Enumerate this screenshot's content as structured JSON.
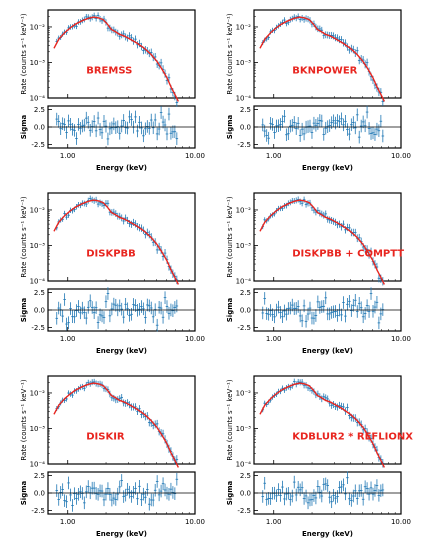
{
  "chart_data": {
    "type": "scatter",
    "layout": "3x2 grid of spectral fit panels, each with a residual sub-panel",
    "xlabel": "Energy (keV)",
    "ylabel_top": "Rate (counts s⁻¹ keV⁻¹)",
    "ylabel_bottom": "Sigma",
    "x_scale": "log",
    "xlim": [
      0.7,
      10
    ],
    "xticks": [
      "1.00",
      "10.00"
    ],
    "top_y_scale": "log",
    "top_ylim": [
      0.0001,
      0.03
    ],
    "top_yticks": [
      "10⁻²",
      "10⁻³",
      "10⁻⁴"
    ],
    "bottom_ylim": [
      -3,
      3
    ],
    "bottom_yticks": [
      "2.5",
      "0.0",
      "-2.5"
    ],
    "colors": {
      "data": "#1f77b4",
      "model": "#e8251f",
      "label": "#e8251f"
    },
    "panels": [
      {
        "model": "BREMSS"
      },
      {
        "model": "BKNPOWER"
      },
      {
        "model": "DISKPBB"
      },
      {
        "model": "DISKPBB + COMPTT"
      },
      {
        "model": "DISKIR"
      },
      {
        "model": "KDBLUR2 * REFLIONX"
      }
    ],
    "model_curve": {
      "energy_keV": [
        0.78,
        0.85,
        0.95,
        1.05,
        1.15,
        1.3,
        1.45,
        1.6,
        1.75,
        1.9,
        2.05,
        2.2,
        2.35,
        2.55,
        2.8,
        3.1,
        3.5,
        4.0,
        4.5,
        5.0,
        5.5,
        6.0,
        6.5,
        7.0,
        7.4
      ],
      "rate": [
        0.0025,
        0.0045,
        0.007,
        0.0095,
        0.012,
        0.015,
        0.0175,
        0.019,
        0.018,
        0.016,
        0.012,
        0.0085,
        0.0075,
        0.0062,
        0.0055,
        0.0045,
        0.0035,
        0.0025,
        0.0017,
        0.0011,
        0.00065,
        0.00038,
        0.0002,
        0.00012,
        8e-05
      ]
    }
  }
}
